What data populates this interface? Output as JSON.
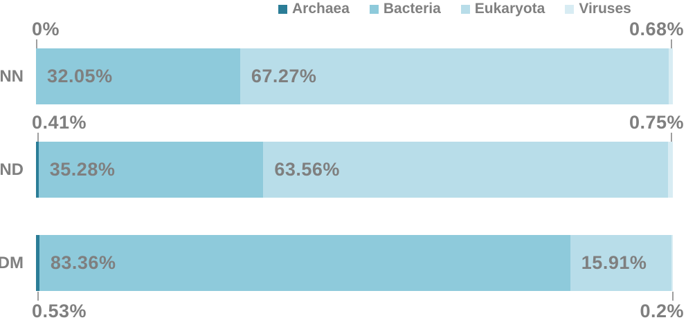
{
  "legend": {
    "items": [
      {
        "label": "Archaea",
        "color": "#2b7d97"
      },
      {
        "label": "Bacteria",
        "color": "#8ecadb"
      },
      {
        "label": "Eukaryota",
        "color": "#b8dde9"
      },
      {
        "label": "Viruses",
        "color": "#d8ecf3"
      }
    ]
  },
  "chart_data": {
    "type": "bar",
    "orientation": "horizontal",
    "stacked": true,
    "categories": [
      "NN",
      "ND",
      "DM"
    ],
    "series": [
      {
        "name": "Archaea",
        "color": "#2b7d97",
        "values": [
          0.0,
          0.41,
          0.53
        ]
      },
      {
        "name": "Bacteria",
        "color": "#8ecadb",
        "values": [
          32.05,
          35.28,
          83.36
        ]
      },
      {
        "name": "Eukaryota",
        "color": "#b8dde9",
        "values": [
          67.27,
          63.56,
          15.91
        ]
      },
      {
        "name": "Viruses",
        "color": "#d8ecf3",
        "values": [
          0.68,
          0.75,
          0.2
        ]
      }
    ],
    "xlim": [
      0,
      100
    ],
    "value_unit": "%",
    "legend_position": "top",
    "grid": false,
    "rows": [
      {
        "category": "NN",
        "inside_labels": [
          {
            "series": "Bacteria",
            "text": "32.05%"
          },
          {
            "series": "Eukaryota",
            "text": "67.27%"
          }
        ],
        "callouts": [
          {
            "series": "Archaea",
            "text": "0%",
            "side": "left",
            "placement": "above"
          },
          {
            "series": "Viruses",
            "text": "0.68%",
            "side": "right",
            "placement": "above"
          }
        ]
      },
      {
        "category": "ND",
        "inside_labels": [
          {
            "series": "Bacteria",
            "text": "35.28%"
          },
          {
            "series": "Eukaryota",
            "text": "63.56%"
          }
        ],
        "callouts": [
          {
            "series": "Archaea",
            "text": "0.41%",
            "side": "left",
            "placement": "above"
          },
          {
            "series": "Viruses",
            "text": "0.75%",
            "side": "right",
            "placement": "above"
          }
        ]
      },
      {
        "category": "DM",
        "inside_labels": [
          {
            "series": "Bacteria",
            "text": "83.36%"
          },
          {
            "series": "Eukaryota",
            "text": "15.91%"
          }
        ],
        "callouts": [
          {
            "series": "Archaea",
            "text": "0.53%",
            "side": "left",
            "placement": "below"
          },
          {
            "series": "Viruses",
            "text": "0.2%",
            "side": "right",
            "placement": "below"
          }
        ]
      }
    ]
  },
  "colors": {
    "data_label": "#7f7f7f",
    "category_label": "#808080",
    "legend_text": "#808080",
    "leader_line": "#9e9e9e",
    "background": "#ffffff"
  }
}
